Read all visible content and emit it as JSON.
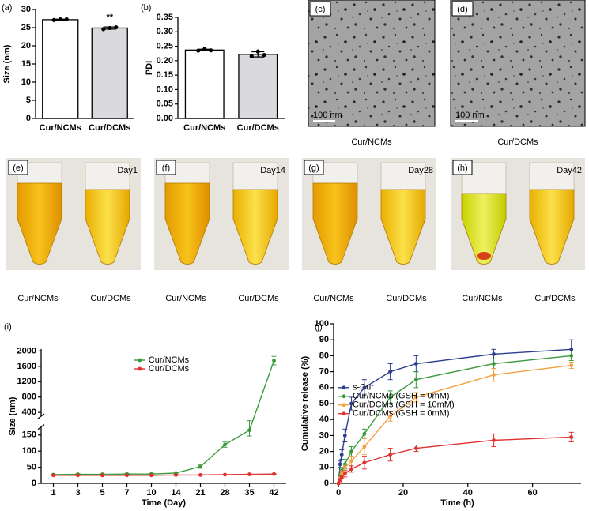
{
  "chart_data": [
    {
      "type": "bar",
      "panel_label": "(a)",
      "ylabel": "Size (nm)",
      "categories": [
        "Cur/NCMs",
        "Cur/DCMs"
      ],
      "values": [
        27.2,
        24.9
      ],
      "errors": [
        0.15,
        0.3
      ],
      "points": [
        [
          27.1,
          27.3,
          27.3
        ],
        [
          24.6,
          24.9,
          25.1
        ]
      ],
      "colors": [
        "#ffffff",
        "#d9d9de"
      ],
      "annotations": [
        null,
        "**"
      ],
      "ylim": [
        0,
        30
      ],
      "yticks": [
        0,
        5,
        10,
        15,
        20,
        25,
        30
      ]
    },
    {
      "type": "bar",
      "panel_label": "(b)",
      "ylabel": "PDI",
      "categories": [
        "Cur/NCMs",
        "Cur/DCMs"
      ],
      "values": [
        0.237,
        0.222
      ],
      "errors": [
        0.003,
        0.009
      ],
      "points": [
        [
          0.235,
          0.24,
          0.236
        ],
        [
          0.215,
          0.232,
          0.22
        ]
      ],
      "colors": [
        "#ffffff",
        "#d9d9de"
      ],
      "ylim": [
        0,
        0.35
      ],
      "yticks": [
        {
          "value": 0,
          "label": "0.00"
        },
        0.05,
        {
          "value": 0.1,
          "label": "0.10"
        },
        0.15,
        {
          "value": 0.2,
          "label": "0.20"
        },
        0.25,
        {
          "value": 0.3,
          "label": "0.30"
        },
        0.35
      ]
    },
    {
      "type": "line",
      "panel_label": "(i)",
      "xlabel": "Time (Day)",
      "ylabel": "Size (nm)",
      "categories": [
        1,
        3,
        5,
        7,
        10,
        14,
        21,
        28,
        35,
        42
      ],
      "series": [
        {
          "name": "Cur/NCMs",
          "color": "#3a9a3a",
          "values": [
            27,
            28,
            28,
            29,
            29,
            32,
            52,
            120,
            165,
            1750
          ],
          "errors": [
            2,
            2,
            2,
            2,
            2,
            3,
            5,
            8,
            18,
            110
          ]
        },
        {
          "name": "Cur/DCMs",
          "color": "#e0302f",
          "values": [
            25,
            25,
            25,
            25,
            25,
            26,
            26,
            27,
            28,
            29
          ],
          "errors": [
            1,
            1,
            1,
            1,
            1,
            1,
            1,
            1,
            1,
            1
          ]
        }
      ],
      "ylim": [
        0,
        2050
      ],
      "y_break": [
        175,
        300
      ],
      "yticks": [
        0,
        50,
        100,
        150,
        400,
        800,
        1200,
        1600,
        2000
      ],
      "legend": "upper center"
    },
    {
      "type": "line",
      "panel_label": "(j)",
      "xlabel": "Time (h)",
      "ylabel": "Cumulative release (%)",
      "x": [
        0,
        0.5,
        1,
        2,
        4,
        8,
        16,
        24,
        48,
        72
      ],
      "series": [
        {
          "name": "s-Cur",
          "color": "#2b3f8f",
          "values": [
            0,
            12,
            18,
            30,
            50,
            60,
            70,
            75,
            81,
            84
          ],
          "errors": [
            0,
            2,
            3,
            4,
            4,
            5,
            5,
            5,
            3,
            6
          ]
        },
        {
          "name": "Cur/NCMs (GSH = 0mM)",
          "color": "#3a9a3a",
          "values": [
            0,
            5,
            8,
            12,
            20,
            31,
            54,
            65,
            75,
            80
          ],
          "errors": [
            0,
            2,
            2,
            3,
            3,
            3,
            4,
            5,
            3,
            3
          ]
        },
        {
          "name": "Cur/DCMs (GSH = 10mM)",
          "color": "#f5a042",
          "values": [
            0,
            3,
            6,
            10,
            14,
            23,
            42,
            54,
            68,
            74
          ],
          "errors": [
            0,
            1,
            2,
            2,
            3,
            5,
            3,
            3,
            4,
            2
          ]
        },
        {
          "name": "Cur/DCMs (GSH = 0mM)",
          "color": "#e0302f",
          "values": [
            0,
            2,
            4,
            6,
            9,
            13,
            18,
            22,
            27,
            29
          ],
          "errors": [
            0,
            1,
            1,
            2,
            2,
            4,
            4,
            2,
            4,
            3
          ]
        }
      ],
      "xlim": [
        -1.5,
        75
      ],
      "xticks": [
        0,
        20,
        40,
        60
      ],
      "ylim": [
        0,
        100
      ],
      "yticks": [
        0,
        10,
        20,
        30,
        40,
        50,
        60,
        70,
        80,
        90,
        100
      ],
      "legend": "center left"
    }
  ],
  "micrographs": [
    {
      "label": "(c)",
      "scale_bar": "100 nm",
      "caption": "Cur/NCMs"
    },
    {
      "label": "(d)",
      "scale_bar": "100 nm",
      "caption": "Cur/DCMs"
    }
  ],
  "photos": [
    {
      "label": "(e)",
      "day": "Day1",
      "captions": [
        "Cur/NCMs",
        "Cur/DCMs"
      ]
    },
    {
      "label": "(f)",
      "day": "Day14",
      "captions": [
        "Cur/NCMs",
        "Cur/DCMs"
      ]
    },
    {
      "label": "(g)",
      "day": "Day28",
      "captions": [
        "Cur/NCMs",
        "Cur/DCMs"
      ]
    },
    {
      "label": "(h)",
      "day": "Day42",
      "captions": [
        "Cur/NCMs",
        "Cur/DCMs"
      ]
    }
  ]
}
